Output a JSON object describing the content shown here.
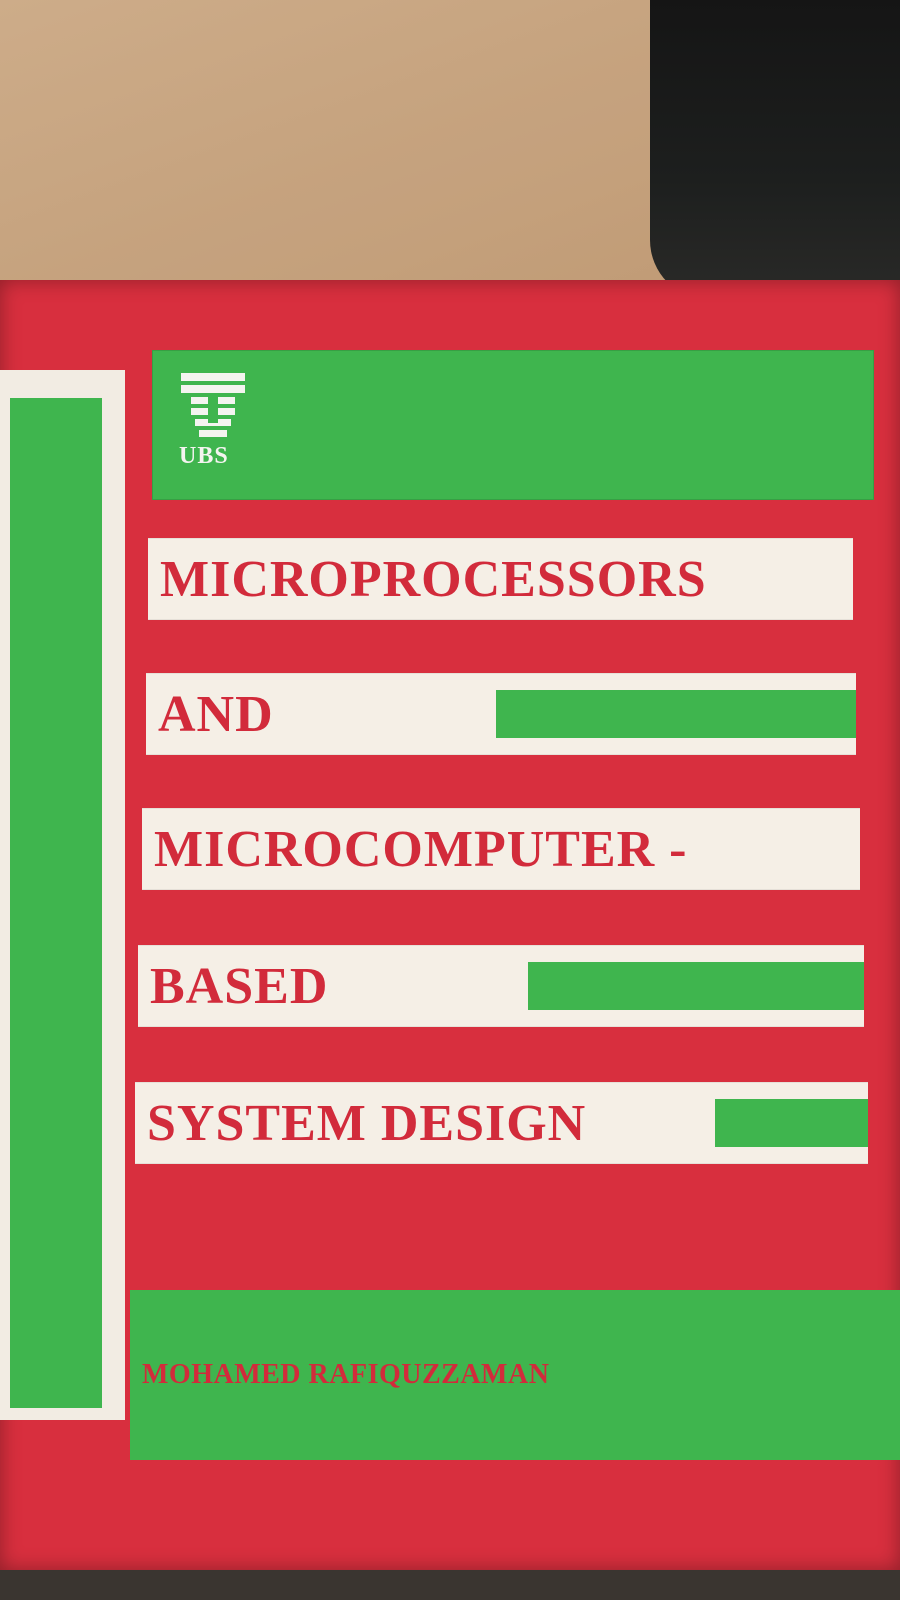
{
  "publisher": {
    "name": "UBS",
    "logo_icon": "ubs-logo-icon"
  },
  "title_lines": [
    "MICROPROCESSORS",
    "AND",
    "MICROCOMPUTER -",
    "BASED",
    "SYSTEM DESIGN"
  ],
  "author": "MOHAMED RAFIQUZZAMAN",
  "colors": {
    "cover_red": "#d82f3e",
    "cover_green": "#3fb54e",
    "band_white": "#f5efe6",
    "text_red": "#d22b3b"
  }
}
